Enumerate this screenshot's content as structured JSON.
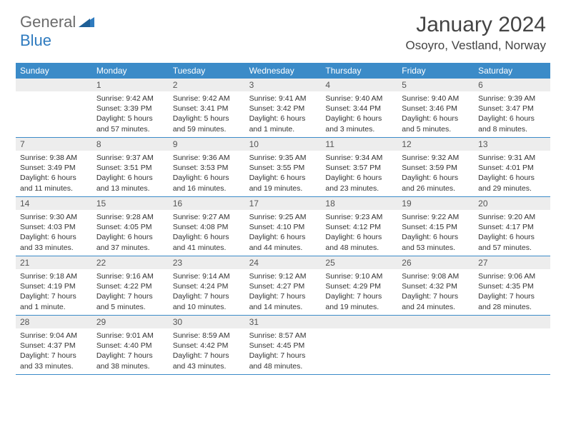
{
  "logo": {
    "text1": "General",
    "text2": "Blue"
  },
  "title": "January 2024",
  "location": "Osoyro, Vestland, Norway",
  "colors": {
    "header_bg": "#3b8bc8",
    "daynum_bg": "#ededed",
    "border": "#3b8bc8",
    "logo_gray": "#6b6b6b",
    "logo_blue": "#2f7bbf"
  },
  "weekdays": [
    "Sunday",
    "Monday",
    "Tuesday",
    "Wednesday",
    "Thursday",
    "Friday",
    "Saturday"
  ],
  "weeks": [
    [
      {
        "num": "",
        "lines": []
      },
      {
        "num": "1",
        "lines": [
          "Sunrise: 9:42 AM",
          "Sunset: 3:39 PM",
          "Daylight: 5 hours",
          "and 57 minutes."
        ]
      },
      {
        "num": "2",
        "lines": [
          "Sunrise: 9:42 AM",
          "Sunset: 3:41 PM",
          "Daylight: 5 hours",
          "and 59 minutes."
        ]
      },
      {
        "num": "3",
        "lines": [
          "Sunrise: 9:41 AM",
          "Sunset: 3:42 PM",
          "Daylight: 6 hours",
          "and 1 minute."
        ]
      },
      {
        "num": "4",
        "lines": [
          "Sunrise: 9:40 AM",
          "Sunset: 3:44 PM",
          "Daylight: 6 hours",
          "and 3 minutes."
        ]
      },
      {
        "num": "5",
        "lines": [
          "Sunrise: 9:40 AM",
          "Sunset: 3:46 PM",
          "Daylight: 6 hours",
          "and 5 minutes."
        ]
      },
      {
        "num": "6",
        "lines": [
          "Sunrise: 9:39 AM",
          "Sunset: 3:47 PM",
          "Daylight: 6 hours",
          "and 8 minutes."
        ]
      }
    ],
    [
      {
        "num": "7",
        "lines": [
          "Sunrise: 9:38 AM",
          "Sunset: 3:49 PM",
          "Daylight: 6 hours",
          "and 11 minutes."
        ]
      },
      {
        "num": "8",
        "lines": [
          "Sunrise: 9:37 AM",
          "Sunset: 3:51 PM",
          "Daylight: 6 hours",
          "and 13 minutes."
        ]
      },
      {
        "num": "9",
        "lines": [
          "Sunrise: 9:36 AM",
          "Sunset: 3:53 PM",
          "Daylight: 6 hours",
          "and 16 minutes."
        ]
      },
      {
        "num": "10",
        "lines": [
          "Sunrise: 9:35 AM",
          "Sunset: 3:55 PM",
          "Daylight: 6 hours",
          "and 19 minutes."
        ]
      },
      {
        "num": "11",
        "lines": [
          "Sunrise: 9:34 AM",
          "Sunset: 3:57 PM",
          "Daylight: 6 hours",
          "and 23 minutes."
        ]
      },
      {
        "num": "12",
        "lines": [
          "Sunrise: 9:32 AM",
          "Sunset: 3:59 PM",
          "Daylight: 6 hours",
          "and 26 minutes."
        ]
      },
      {
        "num": "13",
        "lines": [
          "Sunrise: 9:31 AM",
          "Sunset: 4:01 PM",
          "Daylight: 6 hours",
          "and 29 minutes."
        ]
      }
    ],
    [
      {
        "num": "14",
        "lines": [
          "Sunrise: 9:30 AM",
          "Sunset: 4:03 PM",
          "Daylight: 6 hours",
          "and 33 minutes."
        ]
      },
      {
        "num": "15",
        "lines": [
          "Sunrise: 9:28 AM",
          "Sunset: 4:05 PM",
          "Daylight: 6 hours",
          "and 37 minutes."
        ]
      },
      {
        "num": "16",
        "lines": [
          "Sunrise: 9:27 AM",
          "Sunset: 4:08 PM",
          "Daylight: 6 hours",
          "and 41 minutes."
        ]
      },
      {
        "num": "17",
        "lines": [
          "Sunrise: 9:25 AM",
          "Sunset: 4:10 PM",
          "Daylight: 6 hours",
          "and 44 minutes."
        ]
      },
      {
        "num": "18",
        "lines": [
          "Sunrise: 9:23 AM",
          "Sunset: 4:12 PM",
          "Daylight: 6 hours",
          "and 48 minutes."
        ]
      },
      {
        "num": "19",
        "lines": [
          "Sunrise: 9:22 AM",
          "Sunset: 4:15 PM",
          "Daylight: 6 hours",
          "and 53 minutes."
        ]
      },
      {
        "num": "20",
        "lines": [
          "Sunrise: 9:20 AM",
          "Sunset: 4:17 PM",
          "Daylight: 6 hours",
          "and 57 minutes."
        ]
      }
    ],
    [
      {
        "num": "21",
        "lines": [
          "Sunrise: 9:18 AM",
          "Sunset: 4:19 PM",
          "Daylight: 7 hours",
          "and 1 minute."
        ]
      },
      {
        "num": "22",
        "lines": [
          "Sunrise: 9:16 AM",
          "Sunset: 4:22 PM",
          "Daylight: 7 hours",
          "and 5 minutes."
        ]
      },
      {
        "num": "23",
        "lines": [
          "Sunrise: 9:14 AM",
          "Sunset: 4:24 PM",
          "Daylight: 7 hours",
          "and 10 minutes."
        ]
      },
      {
        "num": "24",
        "lines": [
          "Sunrise: 9:12 AM",
          "Sunset: 4:27 PM",
          "Daylight: 7 hours",
          "and 14 minutes."
        ]
      },
      {
        "num": "25",
        "lines": [
          "Sunrise: 9:10 AM",
          "Sunset: 4:29 PM",
          "Daylight: 7 hours",
          "and 19 minutes."
        ]
      },
      {
        "num": "26",
        "lines": [
          "Sunrise: 9:08 AM",
          "Sunset: 4:32 PM",
          "Daylight: 7 hours",
          "and 24 minutes."
        ]
      },
      {
        "num": "27",
        "lines": [
          "Sunrise: 9:06 AM",
          "Sunset: 4:35 PM",
          "Daylight: 7 hours",
          "and 28 minutes."
        ]
      }
    ],
    [
      {
        "num": "28",
        "lines": [
          "Sunrise: 9:04 AM",
          "Sunset: 4:37 PM",
          "Daylight: 7 hours",
          "and 33 minutes."
        ]
      },
      {
        "num": "29",
        "lines": [
          "Sunrise: 9:01 AM",
          "Sunset: 4:40 PM",
          "Daylight: 7 hours",
          "and 38 minutes."
        ]
      },
      {
        "num": "30",
        "lines": [
          "Sunrise: 8:59 AM",
          "Sunset: 4:42 PM",
          "Daylight: 7 hours",
          "and 43 minutes."
        ]
      },
      {
        "num": "31",
        "lines": [
          "Sunrise: 8:57 AM",
          "Sunset: 4:45 PM",
          "Daylight: 7 hours",
          "and 48 minutes."
        ]
      },
      {
        "num": "",
        "lines": []
      },
      {
        "num": "",
        "lines": []
      },
      {
        "num": "",
        "lines": []
      }
    ]
  ]
}
